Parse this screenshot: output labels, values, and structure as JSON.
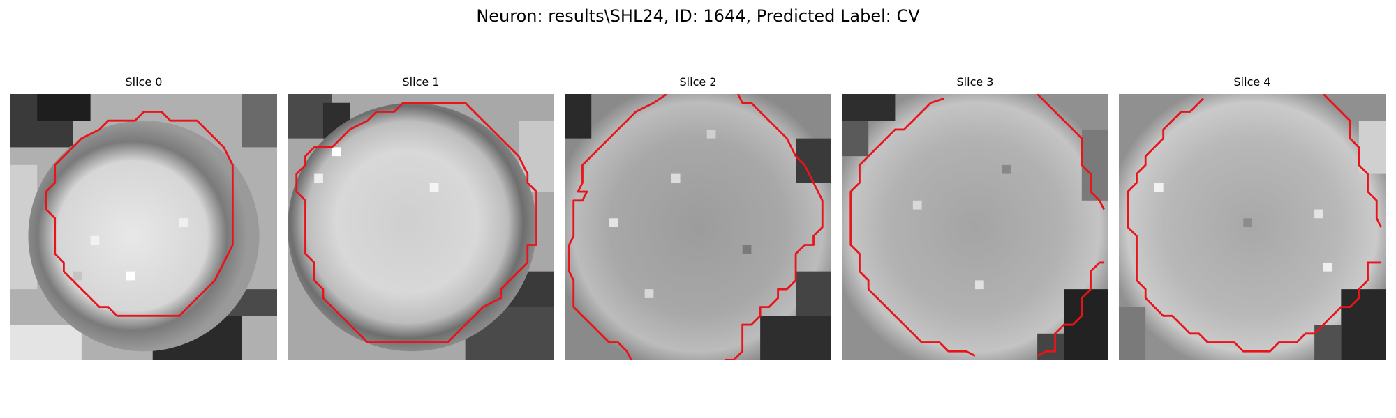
{
  "figure": {
    "title": "Neuron: results\\SHL24, ID: 1644, Predicted Label: CV"
  },
  "panels": [
    {
      "title": "Slice 0"
    },
    {
      "title": "Slice 1"
    },
    {
      "title": "Slice 2"
    },
    {
      "title": "Slice 3"
    },
    {
      "title": "Slice 4"
    }
  ],
  "colors": {
    "contour": "#e8141a",
    "background": "#ffffff"
  },
  "image_style": "grayscale"
}
